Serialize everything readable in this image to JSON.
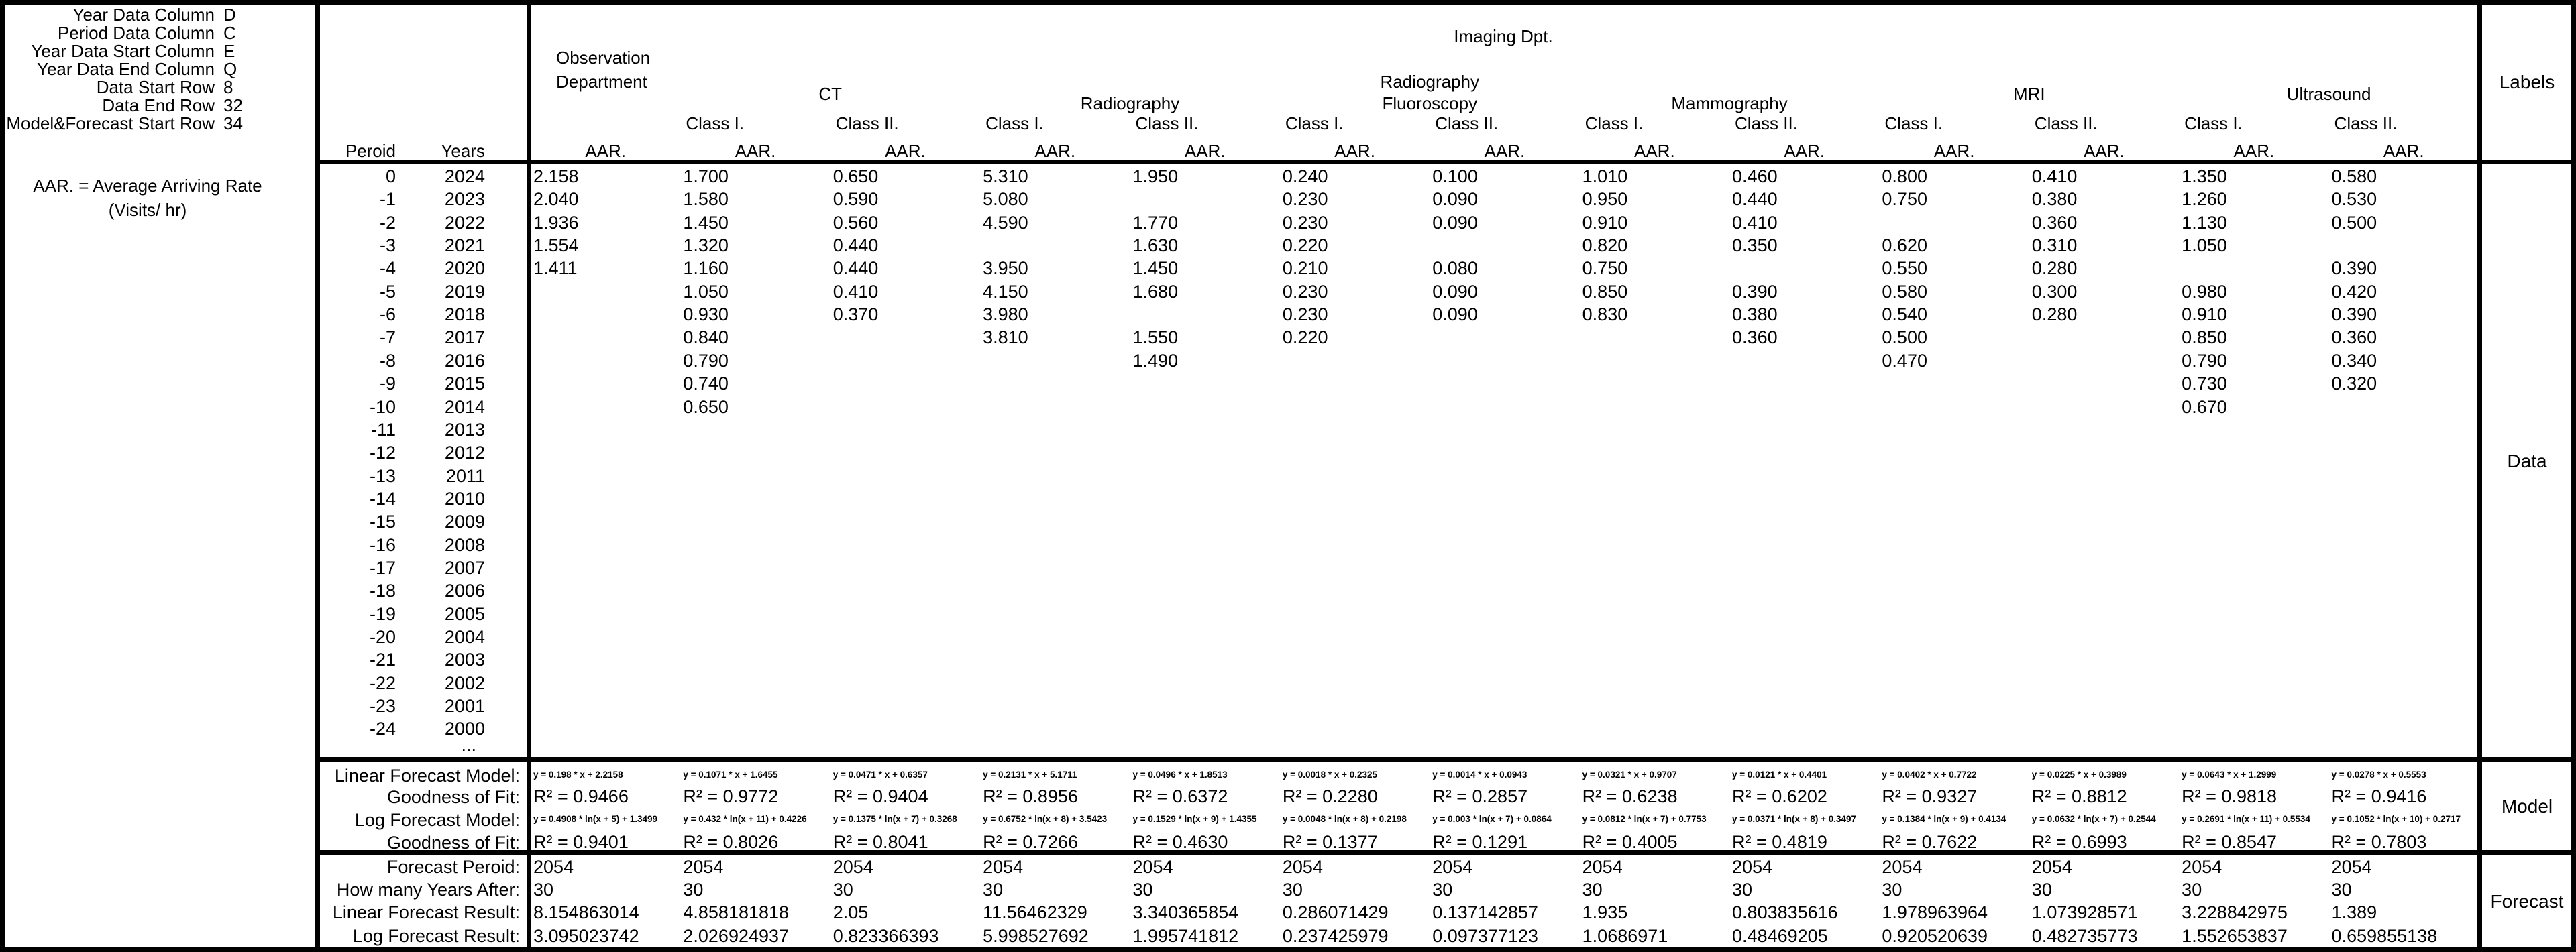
{
  "left_panel": {
    "config": [
      {
        "label": "Year Data Column",
        "value": "D"
      },
      {
        "label": "Period Data Column",
        "value": "C"
      },
      {
        "label": "Year Data Start Column",
        "value": "E"
      },
      {
        "label": "Year Data End Column",
        "value": "Q"
      },
      {
        "label": "Data Start Row",
        "value": "8"
      },
      {
        "label": "Data End Row",
        "value": "32"
      },
      {
        "label": "Model&Forecast Start Row",
        "value": "34"
      }
    ],
    "note_line1": "AAR. = Average Arriving Rate",
    "note_line2": "(Visits/ hr)"
  },
  "header": {
    "title": "Imaging Dpt.",
    "period_label": "Peroid",
    "years_label": "Years",
    "aar_label": "AAR.",
    "groups": [
      {
        "lines": [
          "Observation",
          "Department"
        ],
        "start": 0,
        "span": 1,
        "align": "left"
      },
      {
        "lines": [
          "CT"
        ],
        "start": 1,
        "span": 2,
        "align": "center"
      },
      {
        "lines": [
          "Radiography"
        ],
        "start": 3,
        "span": 2,
        "align": "center"
      },
      {
        "lines": [
          "Radiography",
          "Fluoroscopy"
        ],
        "start": 5,
        "span": 2,
        "align": "center"
      },
      {
        "lines": [
          "Mammography"
        ],
        "start": 7,
        "span": 2,
        "align": "center"
      },
      {
        "lines": [
          "MRI"
        ],
        "start": 9,
        "span": 2,
        "align": "center"
      },
      {
        "lines": [
          "Ultrasound"
        ],
        "start": 11,
        "span": 2,
        "align": "center"
      }
    ],
    "class_labels": [
      "",
      "Class I.",
      "Class II.",
      "Class I.",
      "Class II.",
      "Class I.",
      "Class II.",
      "Class I.",
      "Class II.",
      "Class I.",
      "Class II.",
      "Class I.",
      "Class II."
    ]
  },
  "table": {
    "ellipsis": "...",
    "rows": [
      {
        "period": "0",
        "year": "2024",
        "values": [
          "2.158",
          "1.700",
          "0.650",
          "5.310",
          "1.950",
          "0.240",
          "0.100",
          "1.010",
          "0.460",
          "0.800",
          "0.410",
          "1.350",
          "0.580"
        ]
      },
      {
        "period": "-1",
        "year": "2023",
        "values": [
          "2.040",
          "1.580",
          "0.590",
          "5.080",
          "",
          "0.230",
          "0.090",
          "0.950",
          "0.440",
          "0.750",
          "0.380",
          "1.260",
          "0.530"
        ]
      },
      {
        "period": "-2",
        "year": "2022",
        "values": [
          "1.936",
          "1.450",
          "0.560",
          "4.590",
          "1.770",
          "0.230",
          "0.090",
          "0.910",
          "0.410",
          "",
          "0.360",
          "1.130",
          "0.500"
        ]
      },
      {
        "period": "-3",
        "year": "2021",
        "values": [
          "1.554",
          "1.320",
          "0.440",
          "",
          "1.630",
          "0.220",
          "",
          "0.820",
          "0.350",
          "0.620",
          "0.310",
          "1.050",
          ""
        ]
      },
      {
        "period": "-4",
        "year": "2020",
        "values": [
          "1.411",
          "1.160",
          "0.440",
          "3.950",
          "1.450",
          "0.210",
          "0.080",
          "0.750",
          "",
          "0.550",
          "0.280",
          "",
          "0.390"
        ]
      },
      {
        "period": "-5",
        "year": "2019",
        "values": [
          "",
          "1.050",
          "0.410",
          "4.150",
          "1.680",
          "0.230",
          "0.090",
          "0.850",
          "0.390",
          "0.580",
          "0.300",
          "0.980",
          "0.420"
        ]
      },
      {
        "period": "-6",
        "year": "2018",
        "values": [
          "",
          "0.930",
          "0.370",
          "3.980",
          "",
          "0.230",
          "0.090",
          "0.830",
          "0.380",
          "0.540",
          "0.280",
          "0.910",
          "0.390"
        ]
      },
      {
        "period": "-7",
        "year": "2017",
        "values": [
          "",
          "0.840",
          "",
          "3.810",
          "1.550",
          "0.220",
          "",
          "",
          "0.360",
          "0.500",
          "",
          "0.850",
          "0.360"
        ]
      },
      {
        "period": "-8",
        "year": "2016",
        "values": [
          "",
          "0.790",
          "",
          "",
          "1.490",
          "",
          "",
          "",
          "",
          "0.470",
          "",
          "0.790",
          "0.340"
        ]
      },
      {
        "period": "-9",
        "year": "2015",
        "values": [
          "",
          "0.740",
          "",
          "",
          "",
          "",
          "",
          "",
          "",
          "",
          "",
          "0.730",
          "0.320"
        ]
      },
      {
        "period": "-10",
        "year": "2014",
        "values": [
          "",
          "0.650",
          "",
          "",
          "",
          "",
          "",
          "",
          "",
          "",
          "",
          "0.670",
          ""
        ]
      },
      {
        "period": "-11",
        "year": "2013",
        "values": []
      },
      {
        "period": "-12",
        "year": "2012",
        "values": []
      },
      {
        "period": "-13",
        "year": "2011",
        "values": []
      },
      {
        "period": "-14",
        "year": "2010",
        "values": []
      },
      {
        "period": "-15",
        "year": "2009",
        "values": []
      },
      {
        "period": "-16",
        "year": "2008",
        "values": []
      },
      {
        "period": "-17",
        "year": "2007",
        "values": []
      },
      {
        "period": "-18",
        "year": "2006",
        "values": []
      },
      {
        "period": "-19",
        "year": "2005",
        "values": []
      },
      {
        "period": "-20",
        "year": "2004",
        "values": []
      },
      {
        "period": "-21",
        "year": "2003",
        "values": []
      },
      {
        "period": "-22",
        "year": "2002",
        "values": []
      },
      {
        "period": "-23",
        "year": "2001",
        "values": []
      },
      {
        "period": "-24",
        "year": "2000",
        "values": []
      }
    ]
  },
  "model": {
    "labels": [
      "Linear Forecast Model:",
      "Goodness of Fit:",
      "Log Forecast Model:",
      "Goodness of Fit:"
    ],
    "linear_model": [
      "y = 0.198 * x + 2.2158",
      "y = 0.1071 * x + 1.6455",
      "y = 0.0471 * x + 0.6357",
      "y = 0.2131 * x + 5.1711",
      "y = 0.0496 * x + 1.8513",
      "y = 0.0018 * x + 0.2325",
      "y = 0.0014 * x + 0.0943",
      "y = 0.0321 * x + 0.9707",
      "y = 0.0121 * x + 0.4401",
      "y = 0.0402 * x + 0.7722",
      "y = 0.0225 * x + 0.3989",
      "y = 0.0643 * x + 1.2999",
      "y = 0.0278 * x + 0.5553"
    ],
    "linear_fit": [
      "R² = 0.9466",
      "R² = 0.9772",
      "R² = 0.9404",
      "R² = 0.8956",
      "R² = 0.6372",
      "R² = 0.2280",
      "R² = 0.2857",
      "R² = 0.6238",
      "R² = 0.6202",
      "R² = 0.9327",
      "R² = 0.8812",
      "R² = 0.9818",
      "R² = 0.9416"
    ],
    "log_model": [
      "y = 0.4908 * ln(x + 5) + 1.3499",
      "y = 0.432 * ln(x + 11) + 0.4226",
      "y = 0.1375 * ln(x + 7) + 0.3268",
      "y = 0.6752 * ln(x + 8) + 3.5423",
      "y = 0.1529 * ln(x + 9) + 1.4355",
      "y = 0.0048 * ln(x + 8) + 0.2198",
      "y = 0.003 * ln(x + 7) + 0.0864",
      "y = 0.0812 * ln(x + 7) + 0.7753",
      "y = 0.0371 * ln(x + 8) + 0.3497",
      "y = 0.1384 * ln(x + 9) + 0.4134",
      "y = 0.0632 * ln(x + 7) + 0.2544",
      "y = 0.2691 * ln(x + 11) + 0.5534",
      "y = 0.1052 * ln(x + 10) + 0.2717"
    ],
    "log_fit": [
      "R² = 0.9401",
      "R² = 0.8026",
      "R² = 0.8041",
      "R² = 0.7266",
      "R² = 0.4630",
      "R² = 0.1377",
      "R² = 0.1291",
      "R² = 0.4005",
      "R² = 0.4819",
      "R² = 0.7622",
      "R² = 0.6993",
      "R² = 0.8547",
      "R² = 0.7803"
    ]
  },
  "forecast": {
    "labels": [
      "Forecast Peroid:",
      "How many Years After:",
      "Linear Forecast Result:",
      "Log Forecast Result:"
    ],
    "period": [
      "2054",
      "2054",
      "2054",
      "2054",
      "2054",
      "2054",
      "2054",
      "2054",
      "2054",
      "2054",
      "2054",
      "2054",
      "2054"
    ],
    "years_after": [
      "30",
      "30",
      "30",
      "30",
      "30",
      "30",
      "30",
      "30",
      "30",
      "30",
      "30",
      "30",
      "30"
    ],
    "linear_result": [
      "8.154863014",
      "4.858181818",
      "2.05",
      "11.56462329",
      "3.340365854",
      "0.286071429",
      "0.137142857",
      "1.935",
      "0.803835616",
      "1.978963964",
      "1.073928571",
      "3.228842975",
      "1.389"
    ],
    "log_result": [
      "3.095023742",
      "2.026924937",
      "0.823366393",
      "5.998527692",
      "1.995741812",
      "0.237425979",
      "0.097377123",
      "1.0686971",
      "0.48469205",
      "0.920520639",
      "0.482735773",
      "1.552653837",
      "0.659855138"
    ]
  },
  "sections": [
    "Labels",
    "Data",
    "Model",
    "Forecast"
  ]
}
